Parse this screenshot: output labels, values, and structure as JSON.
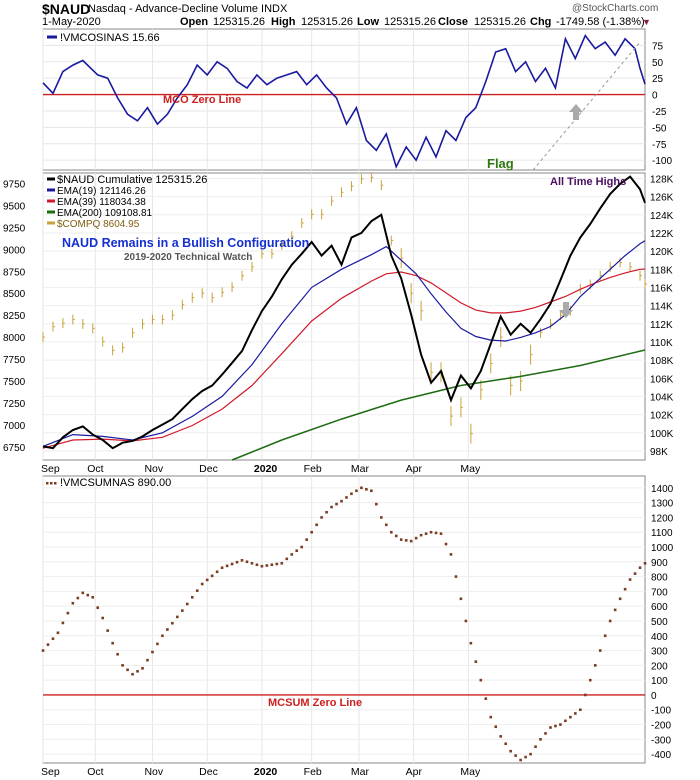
{
  "header": {
    "symbol": "$NAUD",
    "exchange_desc": "Nasdaq - Advance-Decline Volume INDX",
    "date": "1-May-2020",
    "open_label": "Open",
    "open": "125315.26",
    "high_label": "High",
    "high": "125315.26",
    "low_label": "Low",
    "low": "125315.26",
    "close_label": "Close",
    "close": "125315.26",
    "chg_label": "Chg",
    "chg": "-1749.58 (-1.38%)",
    "chg_arrow": "▼",
    "copyright": "@StockCharts.com"
  },
  "colors": {
    "navy": "#1a1aa0",
    "black": "#000000",
    "red": "#d11a2a",
    "green": "#1d6b12",
    "gold": "#c8a238",
    "brown": "#7a3d22",
    "zero": "#cc2020",
    "flag": "#2e7a10",
    "annot_blue": "#1530d0",
    "annot_purple": "#4a1060"
  },
  "chart_data": [
    {
      "type": "line",
      "title": "!VMCOSINAS 15.66",
      "annotations": [
        "MCO Zero Line",
        "Flag"
      ],
      "ylim": [
        -115,
        100
      ],
      "yticks": [
        -100,
        -75,
        -50,
        -25,
        0,
        25,
        50,
        75
      ],
      "series": [
        {
          "name": "!VMCOSINAS",
          "x": [
            0,
            4,
            8,
            12,
            16,
            22,
            26,
            30,
            34,
            38,
            42,
            46,
            50,
            54,
            58,
            62,
            66,
            70,
            74,
            78,
            82,
            86,
            90,
            94,
            98,
            102,
            106,
            110,
            114,
            118,
            122,
            126,
            130,
            134,
            138,
            142,
            146,
            150,
            154,
            158,
            162,
            166,
            170,
            174,
            178,
            182,
            186,
            190,
            194,
            198,
            202,
            206,
            210,
            214,
            218,
            222,
            226,
            230,
            234,
            238,
            240,
            242
          ],
          "values": [
            18,
            2,
            35,
            45,
            52,
            30,
            25,
            -5,
            -30,
            -40,
            -20,
            -45,
            -30,
            -5,
            15,
            45,
            30,
            50,
            40,
            20,
            10,
            30,
            15,
            25,
            30,
            35,
            15,
            30,
            10,
            -5,
            -45,
            -20,
            -70,
            -85,
            -60,
            -110,
            -80,
            -100,
            -65,
            -95,
            -55,
            -70,
            -35,
            -20,
            20,
            65,
            70,
            35,
            50,
            20,
            40,
            10,
            85,
            55,
            90,
            70,
            80,
            60,
            85,
            70,
            40,
            16
          ]
        }
      ]
    },
    {
      "type": "line",
      "title": "$NAUD Cumulative 125315.26",
      "annotations": [
        "NAUD Remains in a Bullish Configuration",
        "2019-2020 Technical Watch",
        "All Time Highs"
      ],
      "xlabels": [
        "Sep",
        "Oct",
        "Nov",
        "Dec",
        "2020",
        "Feb",
        "Mar",
        "Apr",
        "May"
      ],
      "left_ylim": [
        6600,
        9870
      ],
      "left_yticks": [
        6750,
        7000,
        7250,
        7500,
        7750,
        8000,
        8250,
        8500,
        8750,
        9000,
        9250,
        9500,
        9750
      ],
      "right_ylim": [
        97000,
        128600
      ],
      "right_yticks": [
        98000,
        100000,
        102000,
        104000,
        106000,
        108000,
        110000,
        112000,
        114000,
        116000,
        118000,
        120000,
        122000,
        124000,
        126000,
        128000
      ],
      "series": [
        {
          "name": "$NAUD Cumulative 125315.26",
          "axis": "right",
          "x": [
            0,
            4,
            8,
            12,
            16,
            20,
            24,
            28,
            32,
            36,
            40,
            44,
            48,
            52,
            56,
            60,
            64,
            68,
            72,
            76,
            80,
            84,
            88,
            92,
            96,
            100,
            104,
            108,
            112,
            116,
            120,
            124,
            128,
            132,
            136,
            140,
            144,
            148,
            152,
            156,
            160,
            164,
            168,
            172,
            176,
            180,
            184,
            188,
            192,
            196,
            200,
            204,
            208,
            212,
            216,
            220,
            224,
            228,
            232,
            236,
            240,
            242
          ],
          "values": [
            98500,
            98300,
            99500,
            100300,
            100700,
            99800,
            99200,
            98300,
            98900,
            99100,
            99600,
            100300,
            100900,
            101500,
            102600,
            103700,
            104600,
            105200,
            106400,
            107700,
            109000,
            111300,
            113400,
            115000,
            116900,
            118500,
            119700,
            121000,
            119500,
            120600,
            118500,
            121500,
            122000,
            123300,
            124000,
            119500,
            117000,
            113000,
            108600,
            105500,
            106800,
            103600,
            106300,
            104900,
            106800,
            109800,
            112800,
            110800,
            112000,
            111000,
            112500,
            114200,
            116800,
            119500,
            121500,
            123000,
            124700,
            126300,
            127400,
            128200,
            126800,
            125315
          ]
        },
        {
          "name": "EMA(19) 121146.26",
          "axis": "right",
          "x": [
            0,
            12,
            24,
            36,
            48,
            60,
            72,
            84,
            96,
            108,
            120,
            132,
            138,
            144,
            150,
            156,
            162,
            168,
            174,
            180,
            186,
            192,
            198,
            204,
            210,
            216,
            222,
            228,
            234,
            240,
            242
          ],
          "values": [
            98500,
            99800,
            99600,
            99200,
            100000,
            101800,
            104000,
            107500,
            112000,
            116000,
            118000,
            119600,
            120500,
            119000,
            117500,
            115300,
            113300,
            111500,
            110600,
            110200,
            110100,
            110500,
            111000,
            111700,
            113000,
            115000,
            116500,
            118000,
            119500,
            120800,
            121146
          ]
        },
        {
          "name": "EMA(39) 118034.38",
          "axis": "right",
          "x": [
            0,
            12,
            24,
            36,
            48,
            60,
            72,
            84,
            96,
            108,
            120,
            132,
            138,
            144,
            150,
            156,
            162,
            168,
            174,
            180,
            186,
            192,
            198,
            204,
            210,
            216,
            222,
            228,
            234,
            240,
            242
          ],
          "values": [
            98300,
            99200,
            99300,
            99100,
            99500,
            100800,
            102600,
            105200,
            108700,
            112300,
            114800,
            116700,
            117500,
            117700,
            117300,
            116500,
            115400,
            114300,
            113500,
            113200,
            113200,
            113400,
            113800,
            114400,
            115000,
            115800,
            116500,
            117100,
            117600,
            118000,
            118034
          ]
        },
        {
          "name": "EMA(200) 109108.81",
          "axis": "right",
          "x": [
            76,
            96,
            120,
            144,
            168,
            192,
            216,
            242
          ],
          "values": [
            97000,
            99200,
            101500,
            103600,
            105200,
            106200,
            107400,
            109108
          ]
        },
        {
          "name": "$COMPQ 8604.95",
          "axis": "left",
          "x": [
            0,
            4,
            8,
            12,
            16,
            20,
            24,
            28,
            32,
            36,
            40,
            44,
            48,
            52,
            56,
            60,
            64,
            68,
            72,
            76,
            80,
            84,
            88,
            92,
            96,
            100,
            104,
            108,
            112,
            116,
            120,
            124,
            128,
            132,
            136,
            140,
            144,
            148,
            152,
            156,
            160,
            164,
            168,
            172,
            176,
            180,
            184,
            188,
            192,
            196,
            200,
            204,
            208,
            212,
            216,
            220,
            224,
            228,
            232,
            236,
            240,
            242
          ],
          "values": [
            8000,
            8120,
            8160,
            8200,
            8150,
            8100,
            7950,
            7850,
            7880,
            8050,
            8150,
            8200,
            8200,
            8250,
            8370,
            8450,
            8500,
            8450,
            8510,
            8570,
            8700,
            8800,
            8950,
            8950,
            9050,
            9150,
            9300,
            9400,
            9400,
            9550,
            9650,
            9720,
            9800,
            9820,
            9730,
            9100,
            8900,
            8500,
            8300,
            7600,
            7600,
            7100,
            7200,
            6900,
            7400,
            7700,
            8000,
            7450,
            7500,
            7800,
            8050,
            8150,
            8250,
            8300,
            8550,
            8600,
            8700,
            8800,
            8850,
            8800,
            8700,
            8605
          ]
        }
      ]
    },
    {
      "type": "scatter",
      "title": "!VMCSUMNAS 890.00",
      "annotations": [
        "MCSUM Zero Line"
      ],
      "xlabels": [
        "Sep",
        "Oct",
        "Nov",
        "Dec",
        "2020",
        "Feb",
        "Mar",
        "Apr",
        "May"
      ],
      "ylim": [
        -460,
        1480
      ],
      "yticks": [
        -400,
        -300,
        -200,
        -100,
        0,
        100,
        200,
        300,
        400,
        500,
        600,
        700,
        800,
        900,
        1000,
        1100,
        1200,
        1300,
        1400
      ],
      "series": [
        {
          "name": "!VMCSUMNAS",
          "x": [
            0,
            6,
            12,
            16,
            20,
            24,
            28,
            32,
            36,
            40,
            48,
            56,
            64,
            72,
            80,
            88,
            96,
            100,
            104,
            108,
            112,
            116,
            120,
            124,
            128,
            132,
            136,
            140,
            144,
            148,
            152,
            156,
            160,
            164,
            168,
            172,
            176,
            180,
            184,
            188,
            192,
            196,
            200,
            204,
            208,
            212,
            216,
            220,
            224,
            228,
            232,
            236,
            240,
            242
          ],
          "values": [
            300,
            420,
            620,
            690,
            660,
            520,
            350,
            200,
            140,
            180,
            400,
            570,
            750,
            860,
            910,
            870,
            890,
            950,
            1000,
            1100,
            1200,
            1270,
            1310,
            1360,
            1400,
            1380,
            1200,
            1100,
            1050,
            1040,
            1080,
            1100,
            1090,
            950,
            650,
            350,
            100,
            -150,
            -280,
            -380,
            -440,
            -400,
            -300,
            -220,
            -200,
            -150,
            -100,
            100,
            300,
            500,
            650,
            780,
            860,
            890
          ]
        }
      ]
    }
  ]
}
